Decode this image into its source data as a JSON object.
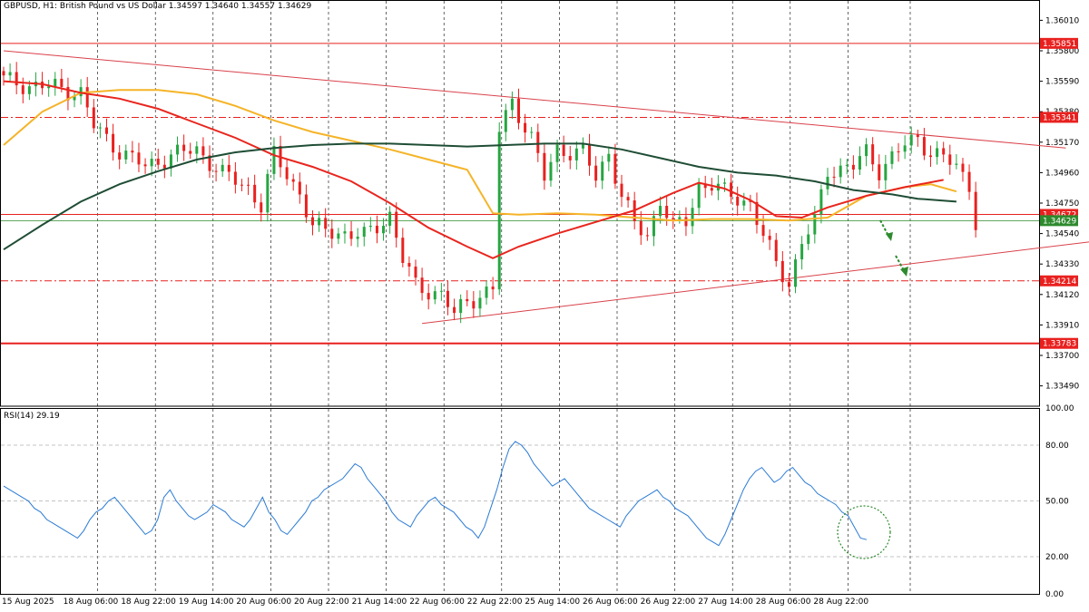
{
  "header": {
    "symbol_line": "GBPUSD, H1:  British Pound vs US Dollar  1.34597 1.34640 1.34557 1.34629"
  },
  "rsi_header": {
    "label": "RSI(14) 29.19"
  },
  "colors": {
    "bull": "#26a641",
    "bear": "#e8211f",
    "sma_red": "#e8261e",
    "sma_orange": "#f5b428",
    "sma_green": "#1f4d35",
    "hline_red": "#e8211f",
    "trendline": "#d9414a",
    "rsi_line": "#2b7bd4",
    "arrow": "#2d8a2d",
    "current_price_line": "#2d8a2d"
  },
  "chart_data": [
    {
      "type": "candlestick",
      "title": "GBPUSD, H1:  British Pound vs US Dollar",
      "ohlc_last": {
        "open": 1.34597,
        "high": 1.3464,
        "low": 1.34557,
        "close": 1.34629
      },
      "ylim": [
        1.3335,
        1.3615
      ],
      "y_tick_labels": [
        "1.36010",
        "1.35800",
        "1.35590",
        "1.35380",
        "1.35170",
        "1.34960",
        "1.34750",
        "1.34540",
        "1.34330",
        "1.34120",
        "1.33910",
        "1.33700",
        "1.33490"
      ],
      "x_tick_labels": [
        "15 Aug 2025",
        "18 Aug 06:00",
        "18 Aug 22:00",
        "19 Aug 14:00",
        "20 Aug 06:00",
        "20 Aug 22:00",
        "21 Aug 14:00",
        "22 Aug 06:00",
        "22 Aug 22:00",
        "25 Aug 14:00",
        "26 Aug 06:00",
        "26 Aug 22:00",
        "27 Aug 14:00",
        "28 Aug 06:00",
        "28 Aug 22:00"
      ],
      "horizontal_levels": [
        {
          "label": "1.35851",
          "value": 1.35851,
          "style": "solid"
        },
        {
          "label": "1.35341",
          "value": 1.35341,
          "style": "dashdot"
        },
        {
          "label": "1.34672",
          "value": 1.34672,
          "style": "solid"
        },
        {
          "label": "1.34629",
          "value": 1.34629,
          "style": "current"
        },
        {
          "label": "1.34214",
          "value": 1.34214,
          "style": "dashdot"
        },
        {
          "label": "1.33783",
          "value": 1.33783,
          "style": "thick"
        }
      ],
      "trendlines": [
        {
          "from": [
            0,
            1.358
          ],
          "to": [
            165,
            1.3513
          ]
        },
        {
          "from": [
            65,
            1.3392
          ],
          "to": [
            170,
            1.3449
          ]
        }
      ],
      "moving_averages": [
        {
          "color_key": "sma_orange",
          "points": [
            [
              0,
              1.3515
            ],
            [
              6,
              1.3538
            ],
            [
              12,
              1.3551
            ],
            [
              18,
              1.3553
            ],
            [
              24,
              1.3553
            ],
            [
              30,
              1.355
            ],
            [
              36,
              1.3542
            ],
            [
              42,
              1.3532
            ],
            [
              48,
              1.3524
            ],
            [
              54,
              1.3518
            ],
            [
              60,
              1.3512
            ],
            [
              66,
              1.3505
            ],
            [
              72,
              1.3498
            ],
            [
              76,
              1.3468
            ],
            [
              80,
              1.3467
            ],
            [
              86,
              1.3468
            ],
            [
              92,
              1.3467
            ],
            [
              98,
              1.3465
            ],
            [
              104,
              1.3463
            ],
            [
              110,
              1.3464
            ],
            [
              116,
              1.3464
            ],
            [
              122,
              1.3463
            ],
            [
              128,
              1.3465
            ],
            [
              134,
              1.348
            ],
            [
              140,
              1.3486
            ],
            [
              144,
              1.3488
            ],
            [
              148,
              1.3483
            ]
          ]
        },
        {
          "color_key": "sma_red",
          "points": [
            [
              0,
              1.3559
            ],
            [
              6,
              1.3557
            ],
            [
              12,
              1.3551
            ],
            [
              18,
              1.3547
            ],
            [
              24,
              1.354
            ],
            [
              30,
              1.353
            ],
            [
              36,
              1.352
            ],
            [
              42,
              1.3508
            ],
            [
              48,
              1.35
            ],
            [
              54,
              1.349
            ],
            [
              60,
              1.3475
            ],
            [
              66,
              1.3458
            ],
            [
              72,
              1.3445
            ],
            [
              76,
              1.3437
            ],
            [
              80,
              1.3445
            ],
            [
              86,
              1.3454
            ],
            [
              92,
              1.3462
            ],
            [
              98,
              1.347
            ],
            [
              104,
              1.3482
            ],
            [
              108,
              1.3489
            ],
            [
              112,
              1.3485
            ],
            [
              116,
              1.3477
            ],
            [
              120,
              1.3466
            ],
            [
              124,
              1.3465
            ],
            [
              128,
              1.3472
            ],
            [
              134,
              1.348
            ],
            [
              140,
              1.3486
            ],
            [
              146,
              1.3491
            ]
          ]
        },
        {
          "color_key": "sma_green",
          "points": [
            [
              0,
              1.3443
            ],
            [
              6,
              1.346
            ],
            [
              12,
              1.3476
            ],
            [
              18,
              1.3488
            ],
            [
              24,
              1.3497
            ],
            [
              30,
              1.3505
            ],
            [
              36,
              1.351
            ],
            [
              42,
              1.3513
            ],
            [
              48,
              1.3515
            ],
            [
              54,
              1.3516
            ],
            [
              60,
              1.3516
            ],
            [
              66,
              1.3515
            ],
            [
              72,
              1.3514
            ],
            [
              78,
              1.3515
            ],
            [
              84,
              1.3516
            ],
            [
              90,
              1.3516
            ],
            [
              96,
              1.3512
            ],
            [
              102,
              1.3506
            ],
            [
              108,
              1.35
            ],
            [
              114,
              1.3496
            ],
            [
              120,
              1.3494
            ],
            [
              126,
              1.349
            ],
            [
              132,
              1.3484
            ],
            [
              138,
              1.3481
            ],
            [
              142,
              1.3478
            ],
            [
              148,
              1.3476
            ]
          ]
        }
      ]
    },
    {
      "type": "line",
      "title": "RSI(14) 29.19",
      "ylim": [
        0,
        100
      ],
      "y_tick_labels": [
        "100.00",
        "80.00",
        "50.00",
        "20.00",
        "0.00"
      ],
      "levels": [
        80,
        50,
        20
      ],
      "series": [
        {
          "values": [
            58,
            56,
            54,
            52,
            50,
            46,
            44,
            40,
            38,
            36,
            34,
            32,
            30,
            34,
            40,
            44,
            46,
            50,
            52,
            48,
            44,
            40,
            36,
            32,
            34,
            40,
            52,
            56,
            50,
            46,
            42,
            40,
            42,
            44,
            48,
            46,
            44,
            40,
            38,
            36,
            40,
            46,
            52,
            44,
            40,
            34,
            32,
            36,
            40,
            44,
            50,
            52,
            56,
            58,
            60,
            62,
            66,
            70,
            68,
            62,
            58,
            54,
            50,
            44,
            40,
            38,
            36,
            42,
            46,
            50,
            52,
            48,
            46,
            44,
            40,
            36,
            34,
            30,
            36,
            46,
            56,
            68,
            78,
            82,
            80,
            76,
            70,
            66,
            62,
            58,
            60,
            62,
            58,
            54,
            50,
            46,
            44,
            42,
            40,
            38,
            36,
            42,
            46,
            50,
            52,
            54,
            56,
            52,
            50,
            46,
            44,
            42,
            38,
            34,
            30,
            28,
            26,
            32,
            40,
            48,
            56,
            62,
            66,
            68,
            64,
            60,
            62,
            66,
            68,
            64,
            60,
            58,
            54,
            52,
            50,
            48,
            44,
            42,
            36,
            30,
            29.19
          ]
        }
      ]
    }
  ]
}
